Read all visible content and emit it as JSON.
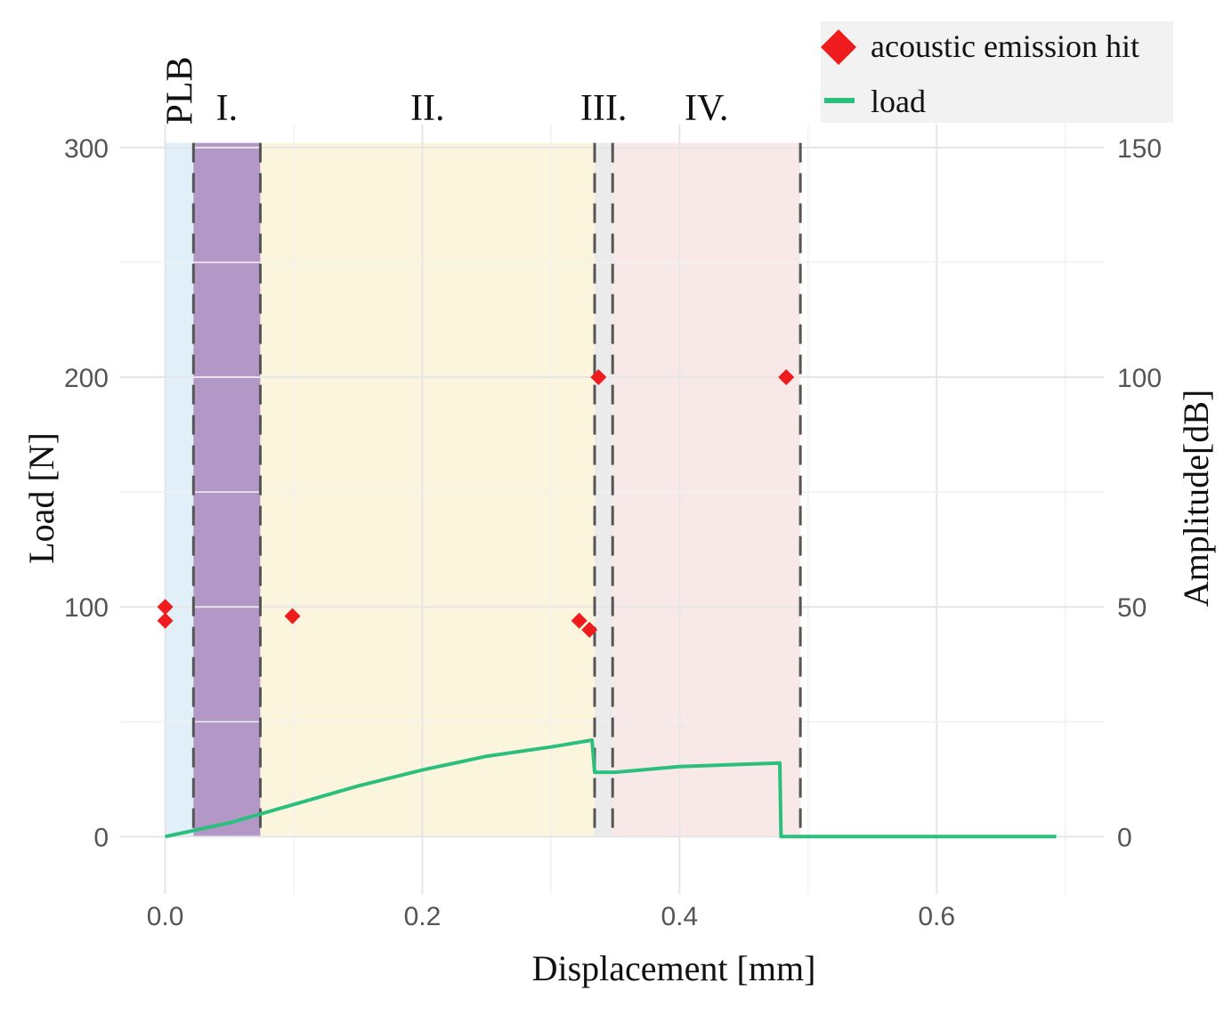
{
  "chart_data": {
    "type": "line",
    "xlabel": "Displacement [mm]",
    "ylabel": "Load [N]",
    "y2label": "Amplitude[dB]",
    "xlim": [
      -0.035,
      0.73
    ],
    "ylim": [
      -25,
      310
    ],
    "y2lim": [
      -12.5,
      155
    ],
    "x_ticks": [
      {
        "value": 0.0,
        "label": "0.0"
      },
      {
        "value": 0.2,
        "label": "0.2"
      },
      {
        "value": 0.4,
        "label": "0.4"
      },
      {
        "value": 0.6,
        "label": "0.6"
      }
    ],
    "y_ticks": [
      {
        "value": 0,
        "label": "0"
      },
      {
        "value": 100,
        "label": "100"
      },
      {
        "value": 200,
        "label": "200"
      },
      {
        "value": 300,
        "label": "300"
      }
    ],
    "y2_ticks": [
      {
        "value": 0,
        "label": "0"
      },
      {
        "value": 50,
        "label": "50"
      },
      {
        "value": 100,
        "label": "100"
      },
      {
        "value": 150,
        "label": "150"
      }
    ],
    "grid": true,
    "phases": [
      {
        "label": "PLB",
        "x_start": 0.0,
        "x_end": 0.022,
        "color": "#d6e9f5",
        "opacity": 0.75,
        "label_rotated": true
      },
      {
        "label": "I.",
        "x_start": 0.022,
        "x_end": 0.074,
        "color": "#8b5fa8",
        "opacity": 0.65,
        "label_rotated": false
      },
      {
        "label": "II.",
        "x_start": 0.074,
        "x_end": 0.334,
        "color": "#fbf1d3",
        "opacity": 0.75,
        "label_rotated": false
      },
      {
        "label": "III.",
        "x_start": 0.334,
        "x_end": 0.348,
        "color": "#e8e8e8",
        "opacity": 0.85,
        "label_rotated": false
      },
      {
        "label": "IV.",
        "x_start": 0.348,
        "x_end": 0.494,
        "color": "#f6e0e0",
        "opacity": 0.75,
        "label_rotated": false
      }
    ],
    "boundaries": [
      0.022,
      0.074,
      0.334,
      0.348,
      0.494
    ],
    "series": [
      {
        "name": "load",
        "axis": "left",
        "color": "#2bbf7e",
        "points": [
          [
            0.0,
            0
          ],
          [
            0.05,
            6
          ],
          [
            0.1,
            14
          ],
          [
            0.15,
            22
          ],
          [
            0.2,
            29
          ],
          [
            0.25,
            35
          ],
          [
            0.3,
            39
          ],
          [
            0.332,
            42
          ],
          [
            0.334,
            28
          ],
          [
            0.35,
            28
          ],
          [
            0.4,
            30.5
          ],
          [
            0.45,
            31.5
          ],
          [
            0.478,
            32
          ],
          [
            0.479,
            0
          ],
          [
            0.5,
            0
          ],
          [
            0.6,
            0
          ],
          [
            0.693,
            0
          ]
        ]
      },
      {
        "name": "acoustic emission hit",
        "axis": "right",
        "color": "#ee1c1c",
        "points": [
          [
            0.0,
            50
          ],
          [
            0.0,
            47
          ],
          [
            0.099,
            48
          ],
          [
            0.322,
            47
          ],
          [
            0.33,
            45
          ],
          [
            0.337,
            100
          ],
          [
            0.483,
            100
          ]
        ]
      }
    ],
    "legend": {
      "position": "top-right",
      "items": [
        {
          "label": "acoustic emission hit",
          "symbol": "diamond",
          "color": "#ee1c1c"
        },
        {
          "label": "load",
          "symbol": "line",
          "color": "#2bbf7e"
        }
      ]
    }
  }
}
